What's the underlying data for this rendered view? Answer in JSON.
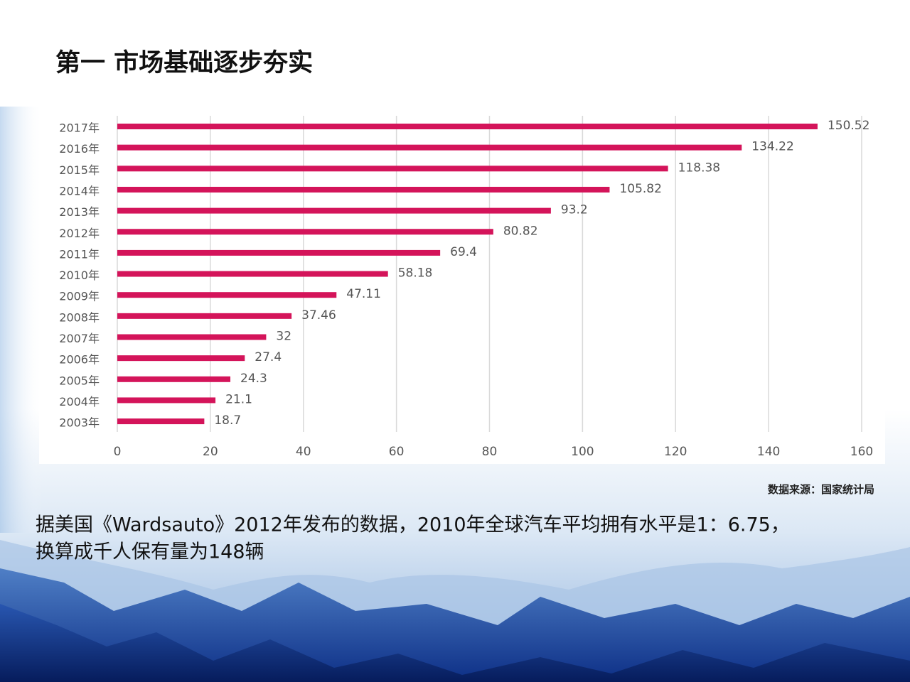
{
  "title": "第一  市场基础逐步夯实",
  "source": "数据来源：国家统计局",
  "body": [
    "据美国《Wardsauto》2012年发布的数据，2010年全球汽车平均拥有水平是1：6.75，",
    "换算成千人保有量为148辆"
  ],
  "chart_data": {
    "type": "hbar",
    "categories": [
      "2017年",
      "2016年",
      "2015年",
      "2014年",
      "2013年",
      "2012年",
      "2011年",
      "2010年",
      "2009年",
      "2008年",
      "2007年",
      "2006年",
      "2005年",
      "2004年",
      "2003年"
    ],
    "values": [
      150.52,
      134.22,
      118.38,
      105.82,
      93.2,
      80.82,
      69.4,
      58.18,
      47.11,
      37.46,
      32,
      27.4,
      24.3,
      21.1,
      18.7
    ],
    "color": "#d4145a",
    "xlim": [
      0,
      160
    ],
    "xticks": [
      0,
      20,
      40,
      60,
      80,
      100,
      120,
      140,
      160
    ],
    "grid": true
  }
}
